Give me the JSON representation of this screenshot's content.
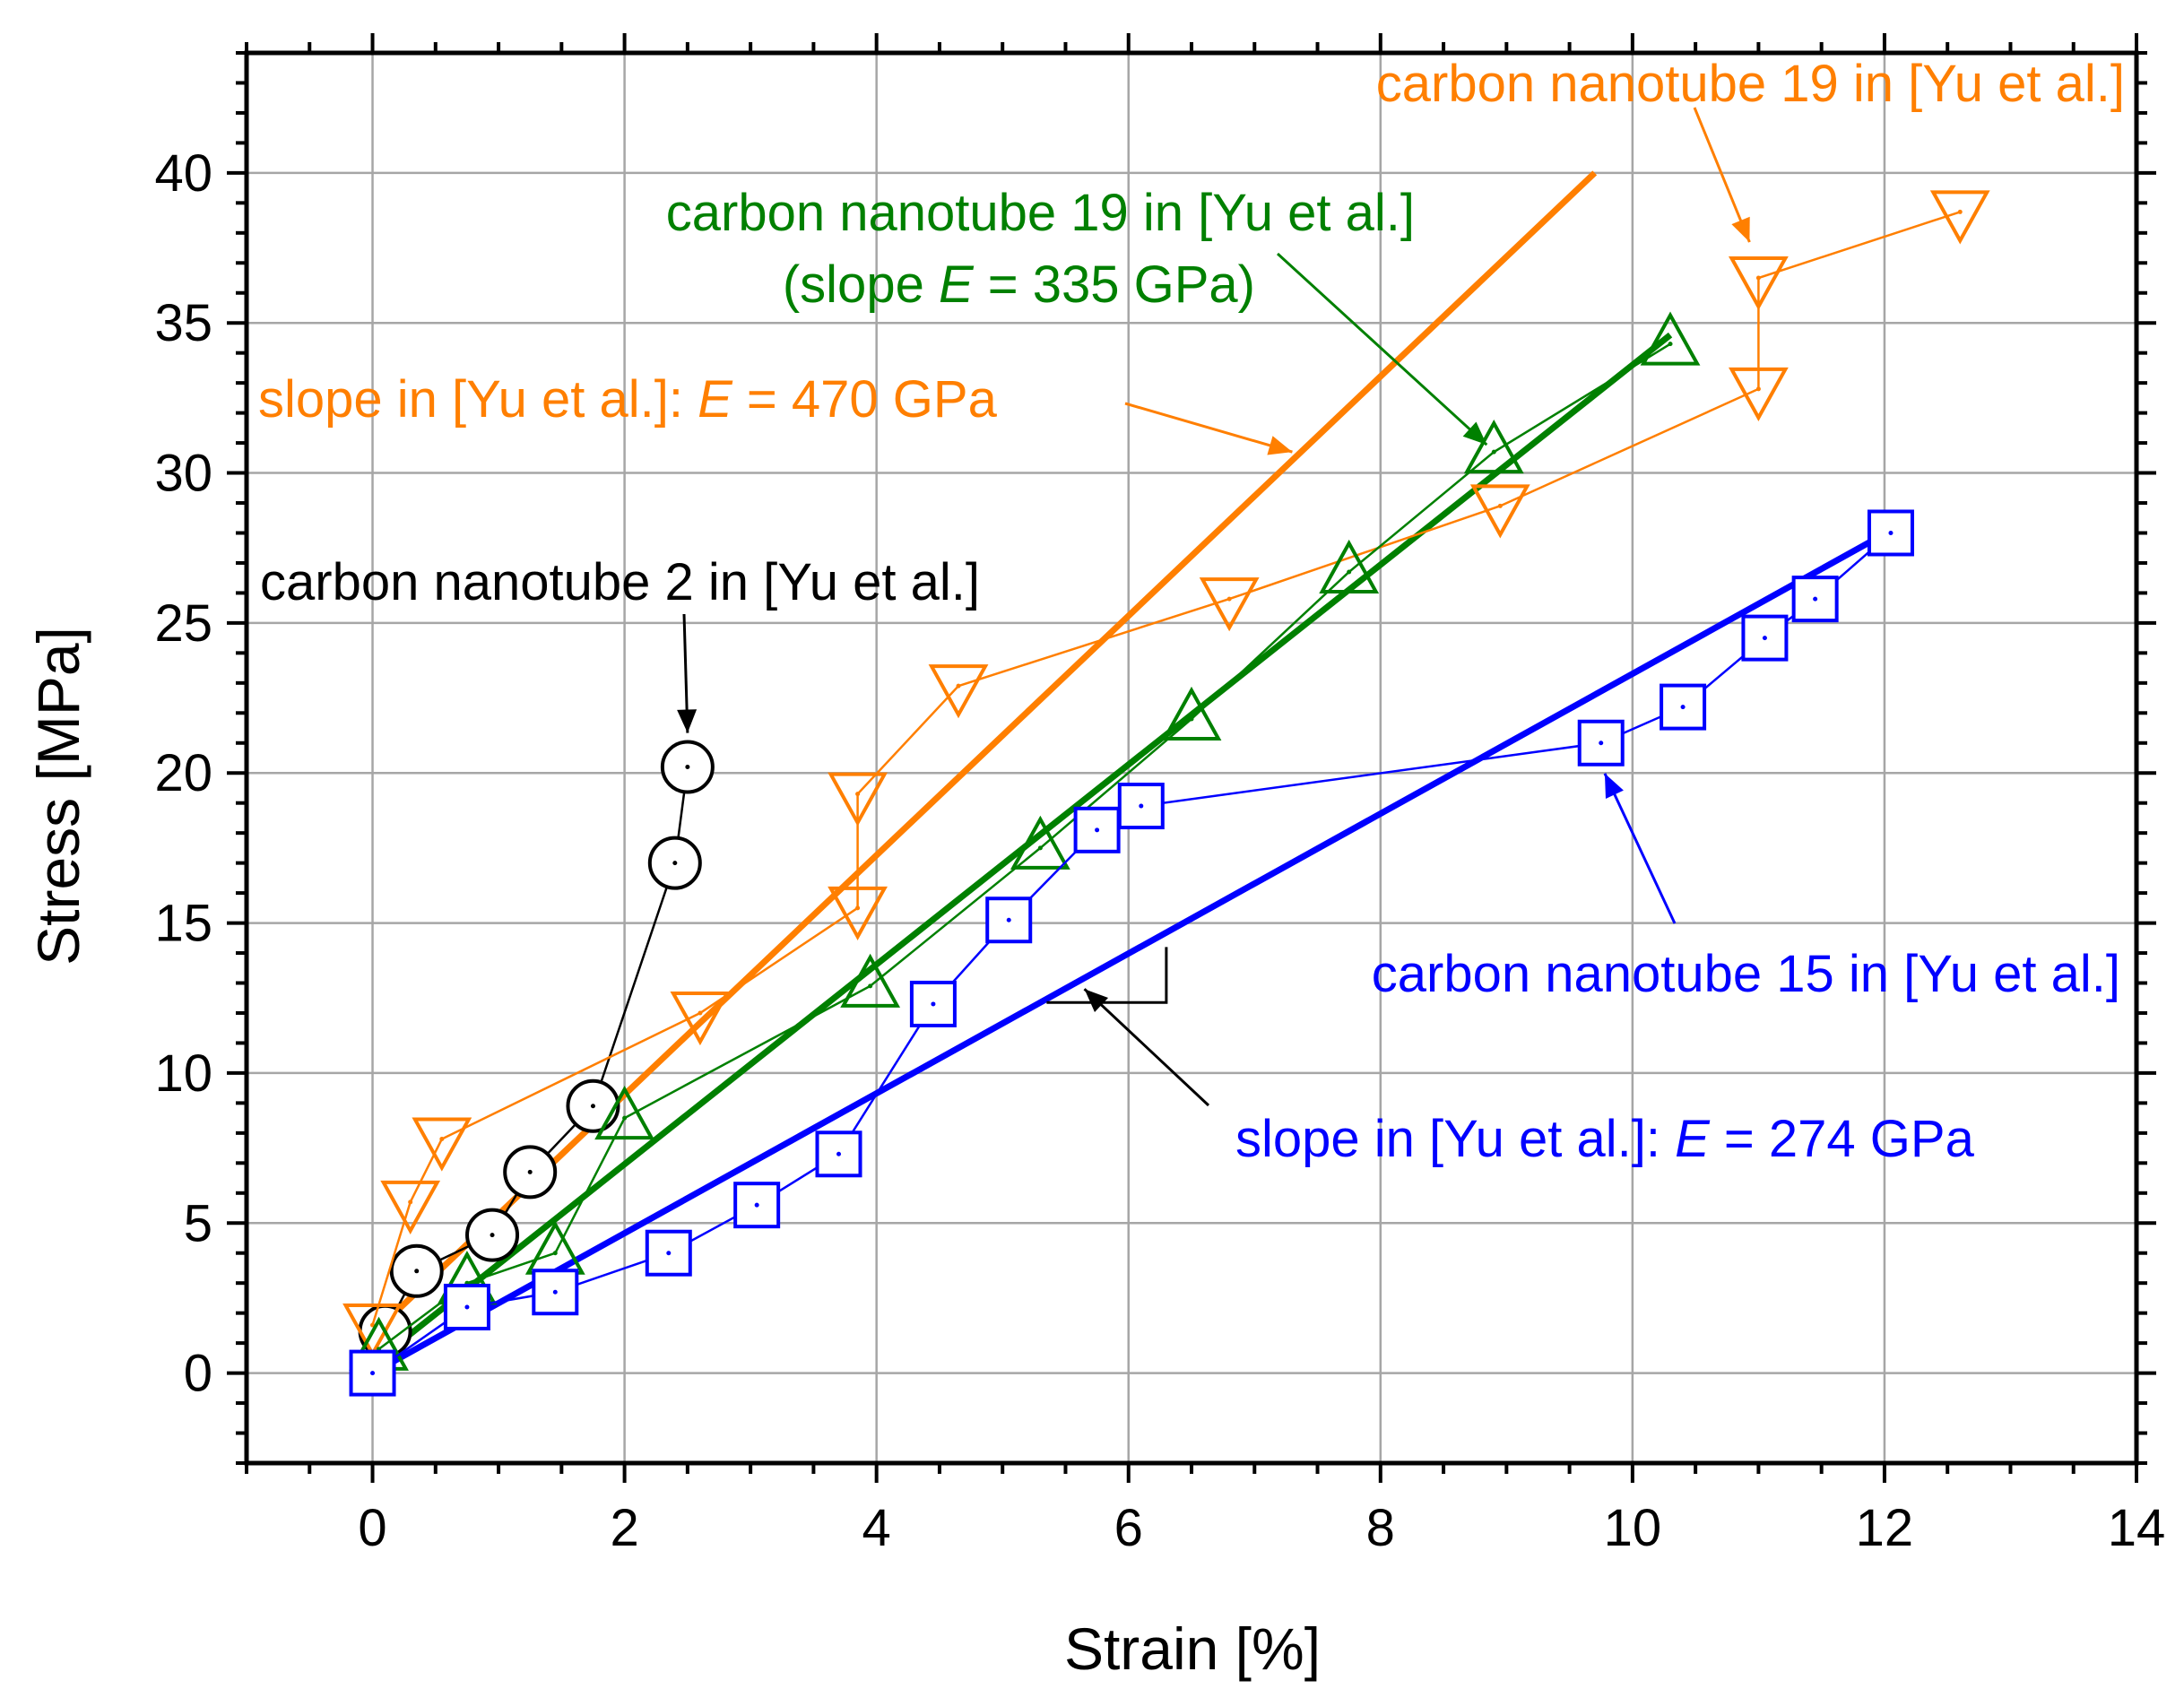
{
  "chart_data": {
    "type": "scatter",
    "title": "",
    "xlabel": "Strain [%]",
    "ylabel": "Stress [MPa]",
    "xlim": [
      -1,
      14
    ],
    "ylim": [
      -3,
      44
    ],
    "x_ticks": [
      0,
      2,
      4,
      6,
      8,
      10,
      12,
      14
    ],
    "y_ticks": [
      0,
      5,
      10,
      15,
      20,
      25,
      30,
      35,
      40
    ],
    "grid": true,
    "colors": {
      "black": "#000000",
      "orange": "#ff7f00",
      "green": "#008000",
      "blue": "#0000ff",
      "grid": "#a6a6a6"
    },
    "series": [
      {
        "name": "carbon nanotube 2 in [Yu et al.]",
        "color": "#000000",
        "marker": "circle",
        "points": [
          [
            0.1,
            1.4
          ],
          [
            0.35,
            3.4
          ],
          [
            0.95,
            4.6
          ],
          [
            1.25,
            6.7
          ],
          [
            1.75,
            8.9
          ],
          [
            2.4,
            17.0
          ],
          [
            2.5,
            20.2
          ]
        ]
      },
      {
        "name": "carbon nanotube 19 in [Yu et al.] (orange)",
        "color": "#ff7f00",
        "marker": "triangle-down",
        "points": [
          [
            0.0,
            1.6
          ],
          [
            0.3,
            5.7
          ],
          [
            0.55,
            7.8
          ],
          [
            2.6,
            12.0
          ],
          [
            3.85,
            15.5
          ],
          [
            3.85,
            19.3
          ],
          [
            4.65,
            22.9
          ],
          [
            6.8,
            25.8
          ],
          [
            8.95,
            28.9
          ],
          [
            11.0,
            32.8
          ],
          [
            11.0,
            36.5
          ],
          [
            12.6,
            38.7
          ]
        ]
      },
      {
        "name": "carbon nanotube 19 in [Yu et al.] (green)",
        "color": "#008000",
        "marker": "triangle-up",
        "points": [
          [
            0.05,
            0.8
          ],
          [
            0.75,
            3.0
          ],
          [
            1.45,
            4.0
          ],
          [
            2.0,
            8.5
          ],
          [
            3.95,
            12.9
          ],
          [
            5.3,
            17.5
          ],
          [
            6.5,
            21.8
          ],
          [
            7.75,
            26.7
          ],
          [
            8.9,
            30.7
          ],
          [
            10.3,
            34.3
          ]
        ]
      },
      {
        "name": "carbon nanotube 15 in [Yu et al.]",
        "color": "#0000ff",
        "marker": "square",
        "points": [
          [
            0.0,
            0.0
          ],
          [
            0.75,
            2.2
          ],
          [
            1.45,
            2.7
          ],
          [
            2.35,
            4.0
          ],
          [
            3.05,
            5.6
          ],
          [
            3.7,
            7.3
          ],
          [
            4.45,
            12.3
          ],
          [
            5.05,
            15.1
          ],
          [
            5.75,
            18.1
          ],
          [
            6.1,
            18.9
          ],
          [
            9.75,
            21.0
          ],
          [
            10.4,
            22.2
          ],
          [
            11.05,
            24.5
          ],
          [
            11.45,
            25.8
          ],
          [
            12.05,
            28.0
          ]
        ]
      }
    ],
    "fits": [
      {
        "name": "slope in [Yu et al.]: E = 470 GPa",
        "color": "#ff7f00",
        "x": [
          0.0,
          9.7
        ],
        "y": [
          1.3,
          40.0
        ]
      },
      {
        "name": "slope E = 335 GPa",
        "color": "#008000",
        "x": [
          0.0,
          10.3
        ],
        "y": [
          0.3,
          34.6
        ]
      },
      {
        "name": "slope in [Yu et al.]: E = 274 GPa",
        "color": "#0000ff",
        "x": [
          0.0,
          12.1
        ],
        "y": [
          0.0,
          28.2
        ]
      }
    ],
    "annotations": [
      {
        "text": "carbon nanotube 19 in [Yu et al.]",
        "color": "#ff7f00"
      },
      {
        "text": "carbon nanotube 19 in [Yu et al.]",
        "color": "#008000"
      },
      {
        "text_pre": "(slope ",
        "text_e": "E",
        "text_post": " = 335 GPa)",
        "color": "#008000"
      },
      {
        "text_pre": "slope in [Yu et al.]: ",
        "text_e": "E",
        "text_post": " = 470 GPa",
        "color": "#ff7f00"
      },
      {
        "text": "carbon nanotube 2 in [Yu et al.]",
        "color": "#000000"
      },
      {
        "text": "carbon nanotube 15 in [Yu et al.]",
        "color": "#0000ff"
      },
      {
        "text_pre": "slope in [Yu et al.]: ",
        "text_e": "E",
        "text_post": " = 274 GPa",
        "color": "#0000ff"
      }
    ]
  }
}
